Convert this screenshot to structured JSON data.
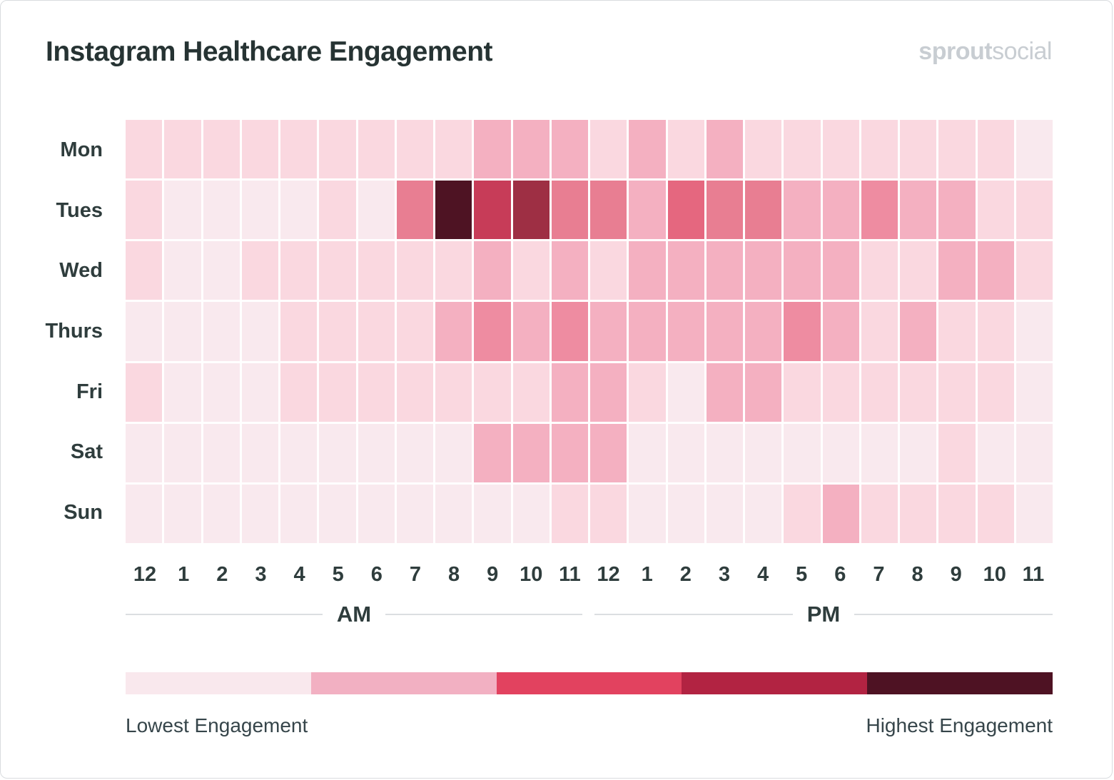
{
  "header": {
    "title": "Instagram Healthcare Engagement",
    "logo_bold": "sprout",
    "logo_light": "social"
  },
  "chart_data": {
    "type": "heatmap",
    "title": "Instagram Healthcare Engagement",
    "rows": [
      "Mon",
      "Tues",
      "Wed",
      "Thurs",
      "Fri",
      "Sat",
      "Sun"
    ],
    "columns": [
      "12",
      "1",
      "2",
      "3",
      "4",
      "5",
      "6",
      "7",
      "8",
      "9",
      "10",
      "11",
      "12",
      "1",
      "2",
      "3",
      "4",
      "5",
      "6",
      "7",
      "8",
      "9",
      "10",
      "11"
    ],
    "column_groups": [
      {
        "label": "AM",
        "span": 12
      },
      {
        "label": "PM",
        "span": 12
      }
    ],
    "value_scale": {
      "min": 1,
      "max": 9,
      "note": "relative engagement intensity estimated from cell color; 1 = lowest, 9 = highest"
    },
    "values": [
      [
        2,
        2,
        2,
        2,
        2,
        2,
        2,
        2,
        2,
        3,
        3,
        3,
        2,
        3,
        2,
        3,
        2,
        2,
        2,
        2,
        2,
        2,
        2,
        1
      ],
      [
        2,
        1,
        1,
        1,
        1,
        2,
        1,
        5,
        9,
        7,
        8,
        5,
        5,
        3,
        6,
        5,
        5,
        3,
        3,
        4,
        3,
        3,
        2,
        2
      ],
      [
        2,
        1,
        1,
        2,
        2,
        2,
        2,
        2,
        2,
        3,
        2,
        3,
        2,
        3,
        3,
        3,
        3,
        3,
        3,
        2,
        2,
        3,
        3,
        2
      ],
      [
        1,
        1,
        1,
        1,
        2,
        2,
        2,
        2,
        3,
        4,
        3,
        4,
        3,
        3,
        3,
        3,
        3,
        4,
        3,
        2,
        3,
        2,
        2,
        1
      ],
      [
        2,
        1,
        1,
        1,
        2,
        2,
        2,
        2,
        2,
        2,
        2,
        3,
        3,
        2,
        1,
        3,
        3,
        2,
        2,
        2,
        2,
        2,
        2,
        1
      ],
      [
        1,
        1,
        1,
        1,
        1,
        1,
        1,
        1,
        1,
        3,
        3,
        3,
        3,
        1,
        1,
        1,
        1,
        1,
        1,
        1,
        1,
        2,
        1,
        1
      ],
      [
        1,
        1,
        1,
        1,
        1,
        1,
        1,
        1,
        1,
        1,
        1,
        2,
        2,
        1,
        1,
        1,
        1,
        2,
        3,
        2,
        2,
        2,
        2,
        1
      ]
    ],
    "palette": {
      "1": "#f9e9ee",
      "2": "#fad8e0",
      "3": "#f4b0c1",
      "4": "#ee8ca1",
      "5": "#e87e92",
      "6": "#e5677f",
      "7": "#c73c58",
      "8": "#9e2f44",
      "9": "#4e1323"
    },
    "legend": {
      "colors": [
        "#f9e8ed",
        "#f2b0c2",
        "#e2425f",
        "#b22342",
        "#4e1223"
      ],
      "low_label": "Lowest Engagement",
      "high_label": "Highest Engagement"
    }
  }
}
